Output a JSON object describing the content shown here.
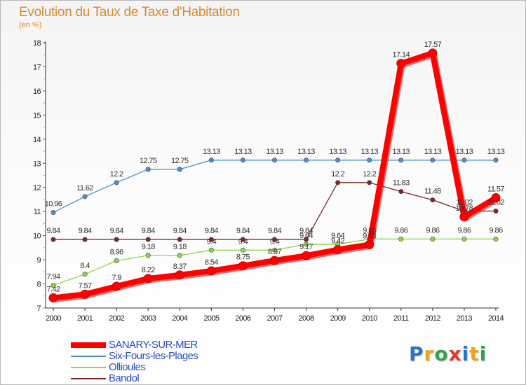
{
  "chart_data": {
    "type": "line",
    "title": "Evolution du Taux de Taxe d'Habitation",
    "subtitle": "(en %)",
    "x": [
      "2000",
      "2001",
      "2002",
      "2003",
      "2004",
      "2005",
      "2006",
      "2007",
      "2008",
      "2009",
      "2010",
      "2011",
      "2012",
      "2013",
      "2014"
    ],
    "ylim": [
      7,
      18
    ],
    "yticks": [
      7,
      8,
      9,
      10,
      11,
      12,
      13,
      14,
      15,
      16,
      17,
      18
    ],
    "grid": false,
    "legend_position": "bottom-left",
    "series": [
      {
        "name": "SANARY-SUR-MER",
        "color": "#ff0000",
        "values": [
          7.42,
          7.57,
          7.9,
          8.22,
          8.37,
          8.54,
          8.75,
          8.97,
          9.17,
          9.42,
          9.63,
          17.14,
          17.57,
          10.78,
          11.57
        ],
        "labels": [
          "7.42",
          "7.57",
          "7.9",
          "8.22",
          "8.37",
          "8.54",
          "8.75",
          "8.97",
          "9.17",
          "9.42",
          "9.63",
          "17.14",
          "17.57",
          "10.78",
          "11.57"
        ]
      },
      {
        "name": "Six-Fours-les-Plages",
        "color": "#4d90cc",
        "values": [
          10.96,
          11.62,
          12.2,
          12.75,
          12.75,
          13.13,
          13.13,
          13.13,
          13.13,
          13.13,
          13.13,
          13.13,
          13.13,
          13.13,
          13.13
        ],
        "labels": [
          "10.96",
          "11.62",
          "12.2",
          "12.75",
          "12.75",
          "13.13",
          "13.13",
          "13.13",
          "13.13",
          "13.13",
          "13.13",
          "13.13",
          "13.13",
          "13.13",
          "13.13"
        ]
      },
      {
        "name": "Ollioules",
        "color": "#8ed64a",
        "values": [
          7.94,
          8.4,
          8.96,
          9.18,
          9.18,
          9.4,
          9.4,
          9.4,
          9.64,
          9.64,
          9.86,
          9.86,
          9.86,
          9.86,
          9.86
        ],
        "labels": [
          "7.94",
          "8.4",
          "8.96",
          "9.18",
          "9.18",
          "9.4",
          "9.4",
          "9.4",
          "9.64",
          "9.64",
          "9.86",
          "9.86",
          "9.86",
          "9.86",
          "9.86"
        ]
      },
      {
        "name": "Bandol",
        "color": "#7a2a2a",
        "values": [
          9.84,
          9.84,
          9.84,
          9.84,
          9.84,
          9.84,
          9.84,
          9.84,
          9.84,
          12.2,
          12.2,
          11.83,
          11.48,
          11.02,
          11.02
        ],
        "labels": [
          "9.84",
          "9.84",
          "9.84",
          "9.84",
          "9.84",
          "9.84",
          "9.84",
          "9.84",
          "9.84",
          "12.2",
          "12.2",
          "11.83",
          "11.48",
          "11.02",
          "11.02"
        ]
      }
    ]
  },
  "legend": [
    "SANARY-SUR-MER",
    "Six-Fours-les-Plages",
    "Ollioules",
    "Bandol"
  ],
  "logo": {
    "text": "Proxiti",
    "letter_colors": [
      "#2a73c9",
      "#f2a01e",
      "#35a24a",
      "#e23a2b",
      "#2a73c9",
      "#f2a01e",
      "#35a24a"
    ]
  }
}
